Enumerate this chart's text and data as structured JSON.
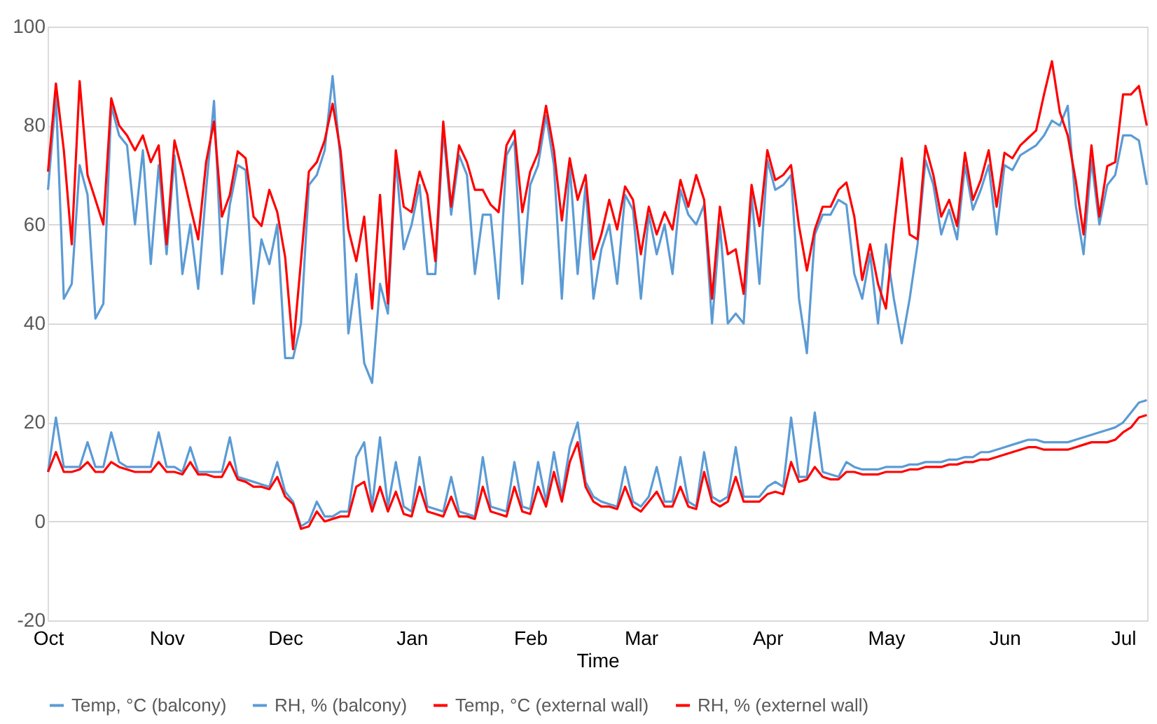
{
  "chart_data": {
    "type": "line",
    "xlabel": "Time",
    "categories": [
      "Oct",
      null,
      null,
      null,
      null,
      null,
      null,
      null,
      null,
      null,
      null,
      null,
      null,
      null,
      null,
      "Nov",
      null,
      null,
      null,
      null,
      null,
      null,
      null,
      null,
      null,
      null,
      null,
      null,
      null,
      null,
      "Dec",
      null,
      null,
      null,
      null,
      null,
      null,
      null,
      null,
      null,
      null,
      null,
      null,
      null,
      null,
      null,
      "Jan",
      null,
      null,
      null,
      null,
      null,
      null,
      null,
      null,
      null,
      null,
      null,
      null,
      null,
      null,
      "Feb",
      null,
      null,
      null,
      null,
      null,
      null,
      null,
      null,
      null,
      null,
      null,
      null,
      null,
      "Mar",
      null,
      null,
      null,
      null,
      null,
      null,
      null,
      null,
      null,
      null,
      null,
      null,
      null,
      null,
      null,
      "Apr",
      null,
      null,
      null,
      null,
      null,
      null,
      null,
      null,
      null,
      null,
      null,
      null,
      null,
      null,
      "May",
      null,
      null,
      null,
      null,
      null,
      null,
      null,
      null,
      null,
      null,
      null,
      null,
      null,
      null,
      "Jun",
      null,
      null,
      null,
      null,
      null,
      null,
      null,
      null,
      null,
      null,
      null,
      null,
      null,
      null,
      "Jul",
      null,
      null,
      null
    ],
    "ylim": [
      -20,
      100
    ],
    "yticks": [
      -20,
      0,
      20,
      40,
      60,
      80,
      100
    ],
    "grid": "y",
    "legend": "bottom",
    "marker": "none",
    "line_style": "solid",
    "series": [
      {
        "name": "Temp, °C (balcony)",
        "color": "#5b9bd5",
        "values": [
          10,
          21,
          11,
          11,
          11,
          16,
          11,
          11,
          18,
          12,
          11,
          11,
          11,
          11,
          18,
          11,
          11,
          10,
          15,
          10,
          10,
          10,
          10,
          17,
          9,
          8.5,
          8,
          7.5,
          7,
          12,
          6,
          4,
          -1,
          0,
          4,
          1,
          1,
          2,
          2,
          13,
          16,
          3,
          17,
          3,
          12,
          3,
          2,
          13,
          3,
          2.5,
          2,
          9,
          2,
          1.5,
          1,
          13,
          3,
          2.5,
          2,
          12,
          3,
          2.5,
          12,
          4,
          14,
          5,
          15,
          20,
          8,
          5,
          4,
          3.5,
          3,
          11,
          4,
          3,
          5,
          11,
          4,
          4,
          13,
          4,
          3,
          14,
          5,
          4,
          5,
          15,
          5,
          5,
          5,
          7,
          8,
          7,
          21,
          9,
          9,
          22,
          10,
          9.5,
          9,
          12,
          11,
          10.5,
          10.5,
          10.5,
          11,
          11,
          11,
          11.5,
          11.5,
          12,
          12,
          12,
          12.5,
          12.5,
          13,
          13,
          14,
          14,
          14.5,
          15,
          15.5,
          16,
          16.5,
          16.5,
          16,
          16,
          16,
          16,
          16.5,
          17,
          17.5,
          18,
          18.5,
          19,
          20,
          22,
          24,
          24.5
        ]
      },
      {
        "name": "RH, % (balcony)",
        "color": "#5b9bd5",
        "values": [
          67,
          86,
          45,
          48,
          72,
          66,
          41,
          44,
          84,
          78,
          76,
          60,
          75,
          52,
          72,
          54,
          74,
          50,
          60,
          47,
          67,
          85,
          50,
          64,
          72,
          71,
          44,
          57,
          52,
          60,
          33,
          33,
          40,
          68,
          70,
          75,
          90,
          73,
          38,
          50,
          32,
          28,
          48,
          42,
          73,
          55,
          60,
          68,
          50,
          50,
          79,
          62,
          74,
          70,
          50,
          62,
          62,
          45,
          74,
          77,
          48,
          68,
          72,
          82,
          72,
          45,
          72,
          50,
          68,
          45,
          55,
          60,
          48,
          66,
          63,
          45,
          62,
          54,
          60,
          50,
          67,
          62,
          60,
          64,
          40,
          60,
          40,
          42,
          40,
          66,
          48,
          73,
          67,
          68,
          70,
          45,
          34,
          58,
          62,
          62,
          65,
          64,
          50,
          45,
          54,
          40,
          56,
          45,
          36,
          45,
          56,
          73,
          68,
          58,
          63,
          57,
          72,
          63,
          67,
          72,
          58,
          72,
          71,
          74,
          75,
          76,
          78,
          81,
          80,
          84,
          64,
          54,
          73,
          60,
          68,
          70,
          78,
          78,
          77,
          68
        ]
      },
      {
        "name": "Temp, °C (external wall)",
        "color": "#ff0000",
        "values": [
          10,
          14,
          10,
          10,
          10.5,
          12,
          10,
          10,
          12,
          11,
          10.5,
          10,
          10,
          10,
          12,
          10,
          10,
          9.5,
          12,
          9.5,
          9.5,
          9,
          9,
          12,
          8.5,
          8,
          7,
          7,
          6.5,
          9,
          5,
          3.5,
          -1.5,
          -1,
          2,
          0,
          0.5,
          1,
          1,
          7,
          8,
          2,
          7,
          2,
          6,
          1.5,
          1,
          7,
          2,
          1.5,
          1,
          5,
          1,
          1,
          0.5,
          7,
          2,
          1.5,
          1,
          7,
          2,
          1.5,
          7,
          3,
          10,
          4,
          12,
          16,
          7,
          4,
          3,
          3,
          2.5,
          7,
          3,
          2,
          4,
          6,
          3,
          3,
          7,
          3,
          2.5,
          10,
          4,
          3,
          4,
          9,
          4,
          4,
          4,
          5.5,
          6,
          5.5,
          12,
          8,
          8.5,
          11,
          9,
          8.5,
          8.5,
          10,
          10,
          9.5,
          9.5,
          9.5,
          10,
          10,
          10,
          10.5,
          10.5,
          11,
          11,
          11,
          11.5,
          11.5,
          12,
          12,
          12.5,
          12.5,
          13,
          13.5,
          14,
          14.5,
          15,
          15,
          14.5,
          14.5,
          14.5,
          14.5,
          15,
          15.5,
          16,
          16,
          16,
          16.5,
          18,
          19,
          21,
          21.5
        ]
      },
      {
        "name": "RH, % (externel wall)",
        "color": "#ff0000",
        "values": [
          70.7,
          88.5,
          75,
          56,
          89,
          70,
          65,
          60,
          85.5,
          80,
          78,
          75,
          78,
          72.6,
          76,
          56,
          77,
          70.7,
          63.6,
          57,
          72.6,
          80.8,
          61.6,
          66,
          74.8,
          73.4,
          61.6,
          59.7,
          67,
          62.5,
          53.4,
          34.8,
          52.6,
          70.7,
          72.6,
          77,
          84.4,
          75,
          59,
          52.6,
          61.6,
          43,
          66,
          44,
          75,
          63.6,
          62.5,
          70.7,
          66,
          52.6,
          80.8,
          63.6,
          76,
          72.6,
          67,
          67,
          64,
          62.5,
          76,
          79,
          62.5,
          70.7,
          74.5,
          84,
          75,
          60.8,
          73.4,
          65,
          70,
          53,
          58,
          65,
          59,
          67.7,
          65,
          54,
          63.6,
          58,
          62.5,
          59,
          69,
          63.6,
          70,
          65,
          45,
          63.6,
          54,
          55,
          46,
          68,
          59.7,
          75,
          69,
          70,
          72,
          59.7,
          50.7,
          59,
          63.6,
          63.6,
          67,
          68.5,
          61.6,
          48.8,
          56,
          48,
          43,
          59,
          73.4,
          58,
          57,
          75.9,
          70,
          61.6,
          65,
          59.7,
          74.5,
          65,
          69,
          75,
          63.6,
          74.5,
          73.4,
          76,
          77.5,
          79,
          86.3,
          93,
          82.7,
          78,
          69,
          58,
          76,
          61.6,
          71.8,
          72.6,
          86.3,
          86.3,
          88,
          80
        ]
      }
    ]
  }
}
